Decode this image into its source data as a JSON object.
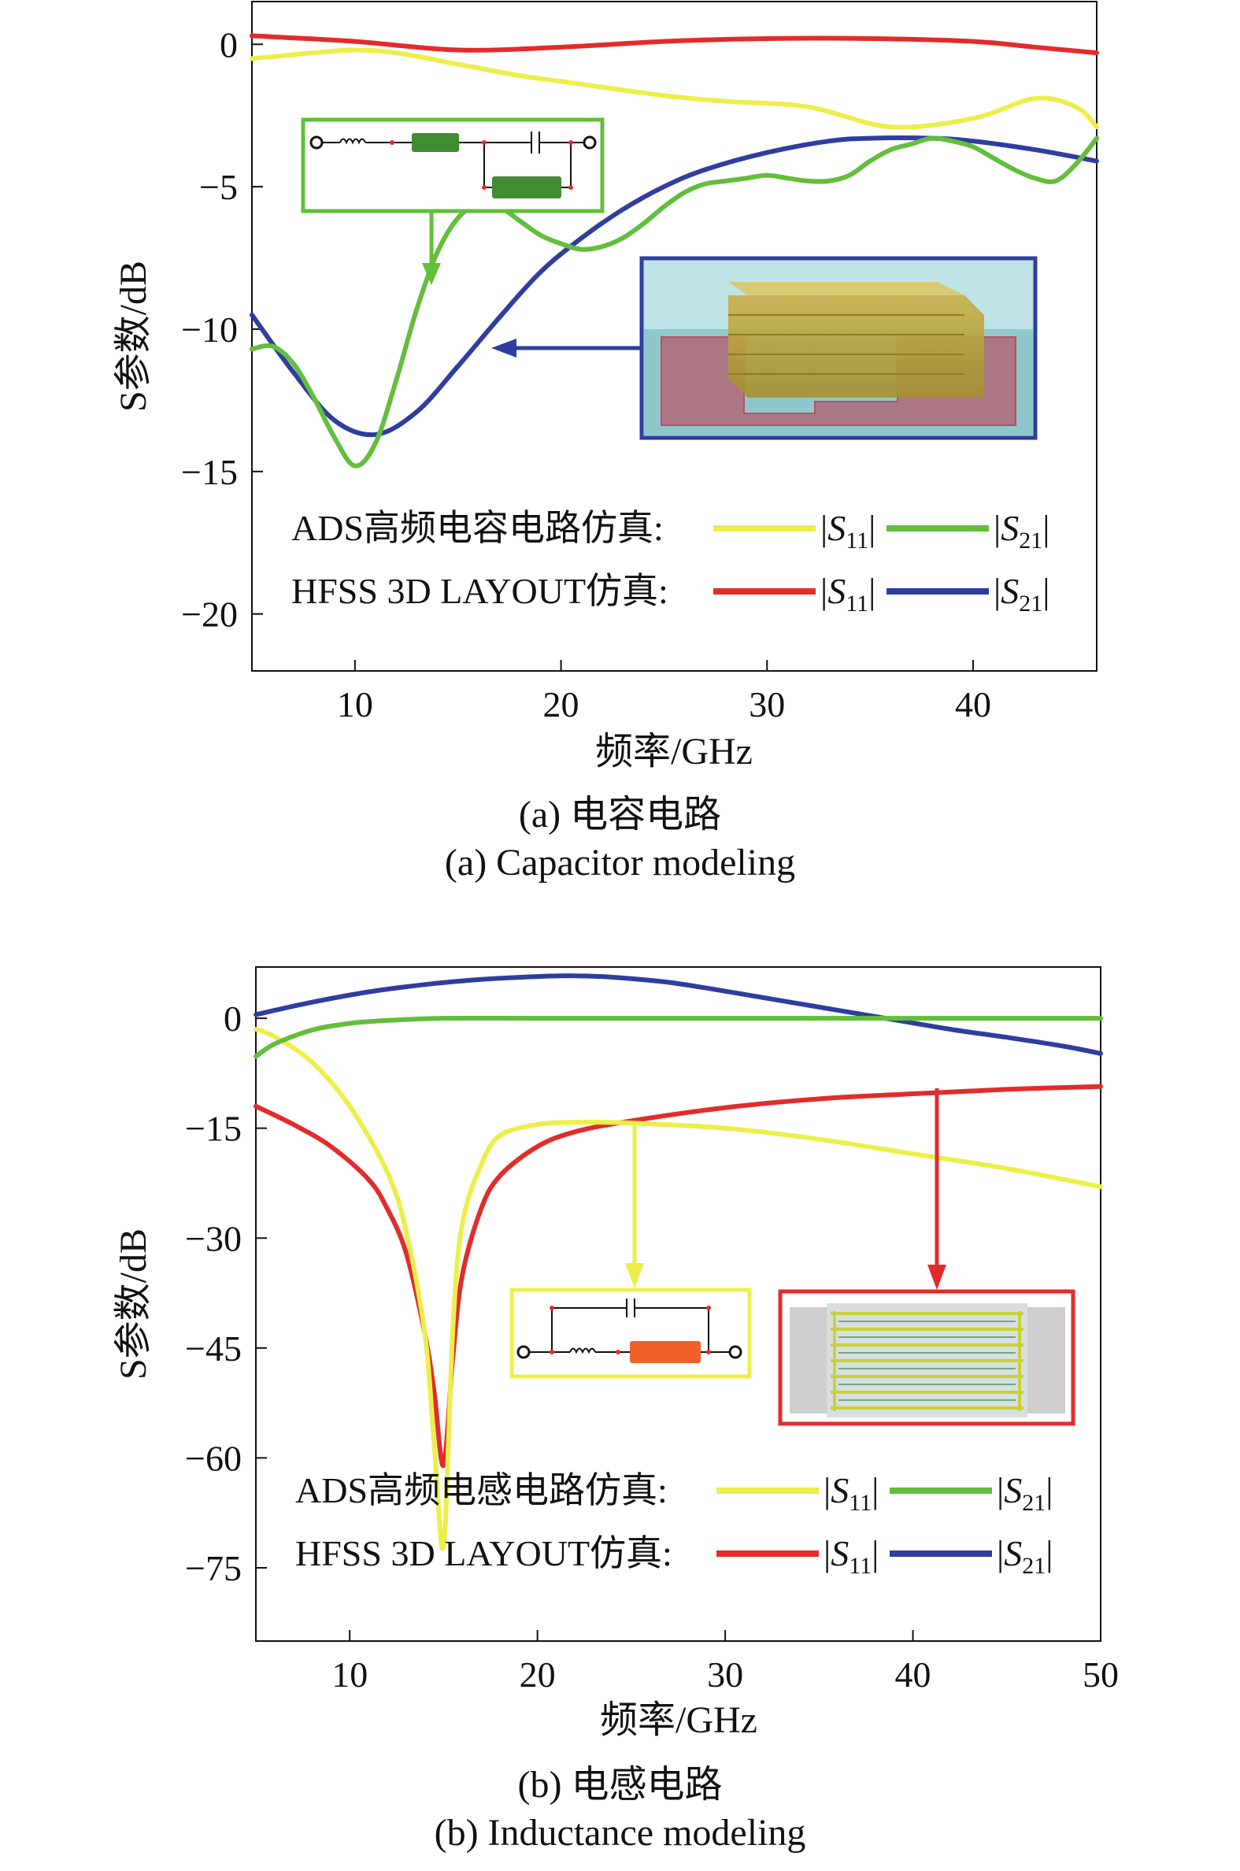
{
  "chart_data": [
    {
      "type": "line",
      "id": "a",
      "xlabel": "频率/GHz",
      "ylabel": "S参数/dB",
      "xlim": [
        5,
        46
      ],
      "ylim": [
        -22,
        1.5
      ],
      "xticks": [
        "10",
        "20",
        "30",
        "40"
      ],
      "yticks": [
        "0",
        "−5",
        "−10",
        "−15",
        "−20"
      ],
      "caption_cn": "(a) 电容电路",
      "caption_en": "(a) Capacitor modeling",
      "legend": {
        "row1_prefix": "ADS高频电容电路仿真:",
        "row2_prefix": "HFSS 3D LAYOUT仿真:",
        "s11": "|S11|",
        "s21": "|S21|"
      },
      "series": [
        {
          "group": "ADS",
          "name": "|S11|",
          "color": "#ecef4a",
          "x": [
            5,
            8,
            10,
            12,
            15,
            18,
            20,
            25,
            28,
            32,
            36,
            40,
            43,
            45,
            46
          ],
          "y": [
            -0.5,
            -0.3,
            -0.2,
            -0.3,
            -0.7,
            -1.1,
            -1.3,
            -1.8,
            -2.0,
            -2.2,
            -2.9,
            -2.6,
            -1.9,
            -2.2,
            -2.9
          ]
        },
        {
          "group": "ADS",
          "name": "|S21|",
          "color": "#63be3c",
          "x": [
            5,
            6,
            7,
            8,
            9,
            10,
            11,
            12,
            13,
            14,
            15,
            16,
            17,
            18,
            19,
            20,
            21,
            22,
            23,
            24,
            25,
            26,
            27,
            28,
            29,
            30,
            31,
            32,
            33,
            34,
            35,
            36,
            37,
            38,
            39,
            40,
            41,
            42,
            43,
            44,
            45,
            46
          ],
          "y": [
            -10.7,
            -10.6,
            -11.2,
            -12.4,
            -13.8,
            -14.8,
            -14.0,
            -11.8,
            -9.3,
            -7.3,
            -6.1,
            -5.6,
            -5.7,
            -6.2,
            -6.7,
            -7.0,
            -7.2,
            -7.1,
            -6.8,
            -6.3,
            -5.7,
            -5.2,
            -4.9,
            -4.8,
            -4.7,
            -4.6,
            -4.7,
            -4.8,
            -4.8,
            -4.6,
            -4.1,
            -3.7,
            -3.5,
            -3.3,
            -3.4,
            -3.6,
            -4.0,
            -4.4,
            -4.7,
            -4.8,
            -4.2,
            -3.3
          ]
        },
        {
          "group": "HFSS",
          "name": "|S11|",
          "color": "#e22c2c",
          "x": [
            5,
            10,
            15,
            20,
            25,
            30,
            35,
            40,
            43,
            46
          ],
          "y": [
            0.3,
            0.1,
            -0.2,
            -0.1,
            0.1,
            0.2,
            0.2,
            0.1,
            -0.1,
            -0.3
          ]
        },
        {
          "group": "HFSS",
          "name": "|S21|",
          "color": "#2f3e9e",
          "x": [
            5,
            7,
            9,
            11,
            13,
            15,
            17,
            19,
            21,
            23,
            25,
            27,
            30,
            33,
            35,
            38,
            40,
            43,
            46
          ],
          "y": [
            -9.5,
            -11.5,
            -13.2,
            -13.7,
            -12.9,
            -11.3,
            -9.6,
            -8.0,
            -6.8,
            -5.8,
            -5.0,
            -4.4,
            -3.8,
            -3.4,
            -3.3,
            -3.3,
            -3.4,
            -3.7,
            -4.1
          ]
        }
      ]
    },
    {
      "type": "line",
      "id": "b",
      "xlabel": "频率/GHz",
      "ylabel": "S参数/dB",
      "xlim": [
        5,
        50
      ],
      "ylim": [
        -85,
        7
      ],
      "xticks": [
        "10",
        "20",
        "30",
        "40",
        "50"
      ],
      "yticks": [
        "0",
        "−15",
        "−30",
        "−45",
        "−60",
        "−75"
      ],
      "caption_cn": "(b) 电感电路",
      "caption_en": "(b) Inductance modeling",
      "legend": {
        "row1_prefix": "ADS高频电感电路仿真:",
        "row2_prefix": "HFSS 3D LAYOUT仿真:",
        "s11": "|S11|",
        "s21": "|S21|"
      },
      "series": [
        {
          "group": "ADS",
          "name": "|S11|",
          "color": "#ecef4a",
          "x": [
            5,
            6,
            8,
            10,
            12,
            13,
            14,
            14.5,
            15,
            15.5,
            16,
            17,
            18,
            20,
            22,
            25,
            30,
            35,
            40,
            45,
            50
          ],
          "y": [
            -1.5,
            -2.5,
            -6,
            -12,
            -21,
            -29,
            -43,
            -58,
            -72,
            -42,
            -28,
            -20,
            -16,
            -14.5,
            -14.2,
            -14.3,
            -15,
            -16.5,
            -18.5,
            -20.5,
            -23
          ]
        },
        {
          "group": "ADS",
          "name": "|S21|",
          "color": "#63be3c",
          "x": [
            5,
            6,
            8,
            10,
            12,
            15,
            20,
            30,
            40,
            50
          ],
          "y": [
            -5.2,
            -3.5,
            -1.6,
            -0.7,
            -0.3,
            0,
            0,
            0,
            0,
            0
          ]
        },
        {
          "group": "HFSS",
          "name": "|S11|",
          "color": "#e22c2c",
          "x": [
            5,
            7,
            9,
            11,
            12,
            13,
            14,
            14.5,
            15,
            15.5,
            16,
            17,
            18,
            20,
            22,
            25,
            30,
            35,
            40,
            45,
            50
          ],
          "y": [
            -12,
            -14.5,
            -17.5,
            -22,
            -26,
            -32,
            -43,
            -51,
            -61,
            -46,
            -35,
            -26,
            -21.5,
            -17.5,
            -15.5,
            -14,
            -12.2,
            -11,
            -10.3,
            -9.7,
            -9.3
          ]
        },
        {
          "group": "HFSS",
          "name": "|S21|",
          "color": "#2f3e9e",
          "x": [
            5,
            8,
            11,
            14,
            17,
            20,
            22,
            24,
            27,
            30,
            33,
            36,
            39,
            42,
            45,
            48,
            50
          ],
          "y": [
            0.5,
            2.2,
            3.6,
            4.6,
            5.3,
            5.7,
            5.8,
            5.6,
            4.9,
            3.7,
            2.4,
            1.1,
            -0.2,
            -1.5,
            -2.6,
            -3.8,
            -4.8
          ]
        }
      ]
    }
  ]
}
